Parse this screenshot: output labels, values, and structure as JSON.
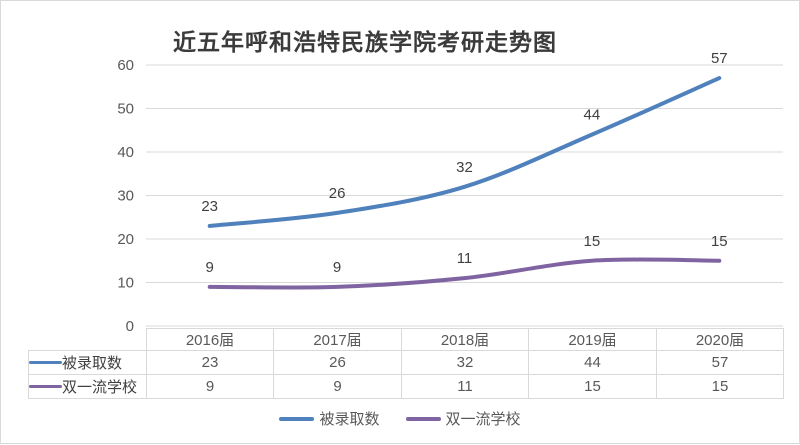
{
  "title": "近五年呼和浩特民族学院考研走势图",
  "chart_data": {
    "type": "line",
    "title": "近五年呼和浩特民族学院考研走势图",
    "categories": [
      "2016届",
      "2017届",
      "2018届",
      "2019届",
      "2020届"
    ],
    "series": [
      {
        "id": "admitted",
        "name": "被录取数",
        "color": "#4F81BD",
        "values": [
          23,
          26,
          32,
          44,
          57
        ]
      },
      {
        "id": "double-first-class",
        "name": "双一流学校",
        "color": "#8064A2",
        "values": [
          9,
          9,
          11,
          15,
          15
        ]
      }
    ],
    "xlabel": "",
    "ylabel": "",
    "ylim": [
      0,
      60
    ],
    "yticks": [
      0,
      10,
      20,
      30,
      40,
      50,
      60
    ],
    "grid": true,
    "smooth_lines": true,
    "data_labels": true,
    "has_data_table": true,
    "legend_position": "bottom"
  },
  "colors": {
    "grid": "#D9D9D9",
    "border": "#D9D9D9",
    "axis_text": "#595959",
    "data_label_text": "#404040",
    "title_text": "#3B3B3B",
    "background": "#FFFFFF"
  }
}
